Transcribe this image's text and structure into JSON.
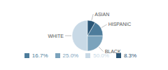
{
  "chart_data": {
    "type": "pie",
    "categories": [
      "WHITE",
      "BLACK",
      "HISPANIC",
      "ASIAN"
    ],
    "values": [
      50.0,
      25.0,
      16.7,
      8.3
    ],
    "value_labels": [
      "50.0%",
      "25.0%",
      "16.7%",
      "8.3%"
    ],
    "colors": [
      "#c8d9e6",
      "#7ba3bc",
      "#4d7c9b",
      "#2a5575"
    ],
    "legend": "bottom"
  }
}
